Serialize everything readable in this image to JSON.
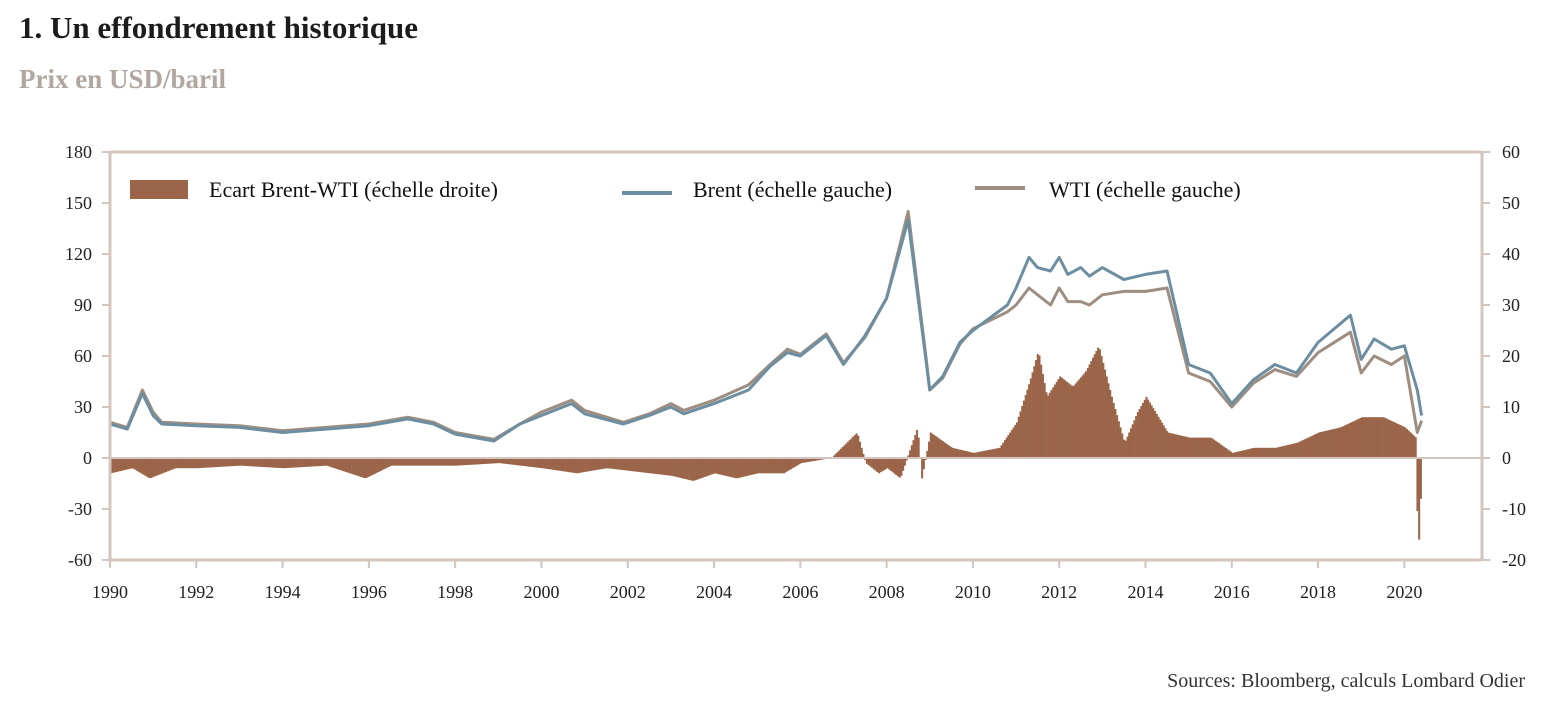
{
  "title": "1. Un effondrement historique",
  "subtitle": "Prix en USD/baril",
  "source": "Sources: Bloomberg, calculs Lombard Odier",
  "colors": {
    "spread": "#9b6549",
    "brent": "#6c8ea0",
    "wti": "#9e8e82",
    "axis": "#d3c6be"
  },
  "chart_data": {
    "type": "line",
    "legend_position": "top",
    "grid": false,
    "x_range": [
      1990,
      2021.8
    ],
    "left_axis": {
      "range": [
        -60,
        180
      ],
      "ticks": [
        "180",
        "150",
        "120",
        "90",
        "60",
        "30",
        "0",
        "-30",
        "-60"
      ]
    },
    "right_axis": {
      "range": [
        -20,
        60
      ],
      "ticks": [
        "60",
        "50",
        "40",
        "30",
        "20",
        "10",
        "0",
        "-10",
        "-20"
      ]
    },
    "x_ticks": [
      "1990",
      "1992",
      "1994",
      "1996",
      "1998",
      "2000",
      "2002",
      "2004",
      "2006",
      "2008",
      "2010",
      "2012",
      "2014",
      "2016",
      "2018",
      "2020"
    ],
    "series": [
      {
        "name": "Ecart Brent-WTI (échelle droite)",
        "type": "bar",
        "axis": "right",
        "x": [
          1990.0,
          1990.5,
          1990.9,
          1991.5,
          1992.0,
          1993.0,
          1994.0,
          1995.0,
          1995.9,
          1996.5,
          1997.0,
          1998.0,
          1999.0,
          2000.0,
          2000.8,
          2001.5,
          2002.0,
          2003.0,
          2003.5,
          2004.0,
          2004.5,
          2005.0,
          2005.6,
          2006.0,
          2006.7,
          2007.3,
          2007.5,
          2007.8,
          2008.0,
          2008.3,
          2008.7,
          2008.8,
          2009.0,
          2009.5,
          2010.0,
          2010.6,
          2011.0,
          2011.3,
          2011.5,
          2011.7,
          2012.0,
          2012.3,
          2012.6,
          2012.9,
          2013.2,
          2013.5,
          2013.8,
          2014.0,
          2014.5,
          2015.0,
          2015.5,
          2016.0,
          2016.5,
          2017.0,
          2017.5,
          2018.0,
          2018.5,
          2019.0,
          2019.5,
          2020.0,
          2020.25,
          2020.3,
          2020.4
        ],
        "values": [
          -3,
          -2,
          -4,
          -2,
          -2,
          -1.5,
          -2,
          -1.5,
          -4,
          -1.5,
          -1.5,
          -1.5,
          -1,
          -2,
          -3,
          -2,
          -2.5,
          -3.5,
          -4.5,
          -3,
          -4,
          -3,
          -3,
          -1,
          0,
          5,
          -1,
          -3,
          -2,
          -4,
          6,
          -4,
          5,
          2,
          1,
          2,
          7,
          15,
          21,
          12,
          16,
          14,
          17,
          22,
          12,
          3,
          9,
          12,
          5,
          4,
          4,
          1,
          2,
          2,
          3,
          5,
          6,
          8,
          8,
          6,
          4,
          -20,
          0
        ]
      },
      {
        "name": "Brent (échelle gauche)",
        "type": "line",
        "axis": "left",
        "x": [
          1990.0,
          1990.4,
          1990.75,
          1991.0,
          1991.2,
          1992.0,
          1993.0,
          1994.0,
          1995.0,
          1996.0,
          1996.9,
          1997.5,
          1998.0,
          1998.9,
          1999.5,
          2000.0,
          2000.7,
          2001.0,
          2001.9,
          2002.5,
          2003.0,
          2003.3,
          2004.0,
          2004.8,
          2005.3,
          2005.7,
          2006.0,
          2006.6,
          2007.0,
          2007.5,
          2008.0,
          2008.5,
          2008.9,
          2009.0,
          2009.3,
          2009.7,
          2010.0,
          2010.8,
          2011.0,
          2011.3,
          2011.5,
          2011.8,
          2012.0,
          2012.2,
          2012.5,
          2012.7,
          2013.0,
          2013.5,
          2014.0,
          2014.5,
          2015.0,
          2015.5,
          2016.0,
          2016.5,
          2017.0,
          2017.5,
          2018.0,
          2018.75,
          2019.0,
          2019.3,
          2019.7,
          2020.0,
          2020.3,
          2020.4
        ],
        "values": [
          20,
          17,
          38,
          25,
          20,
          19,
          18,
          15,
          17,
          19,
          23,
          20,
          14,
          10,
          20,
          25,
          32,
          26,
          20,
          25,
          30,
          26,
          32,
          40,
          54,
          62,
          60,
          72,
          55,
          72,
          94,
          140,
          60,
          40,
          48,
          68,
          75,
          90,
          100,
          118,
          112,
          110,
          118,
          108,
          112,
          107,
          112,
          105,
          108,
          110,
          55,
          50,
          32,
          46,
          55,
          50,
          68,
          84,
          58,
          70,
          64,
          66,
          40,
          25
        ]
      },
      {
        "name": "WTI (échelle gauche)",
        "type": "line",
        "axis": "left",
        "x": [
          1990.0,
          1990.4,
          1990.75,
          1991.0,
          1991.2,
          1992.0,
          1993.0,
          1994.0,
          1995.0,
          1996.0,
          1996.9,
          1997.5,
          1998.0,
          1998.9,
          1999.5,
          2000.0,
          2000.7,
          2001.0,
          2001.9,
          2002.5,
          2003.0,
          2003.3,
          2004.0,
          2004.8,
          2005.3,
          2005.7,
          2006.0,
          2006.6,
          2007.0,
          2007.5,
          2008.0,
          2008.5,
          2008.9,
          2009.0,
          2009.3,
          2009.7,
          2010.0,
          2010.8,
          2011.0,
          2011.3,
          2011.5,
          2011.8,
          2012.0,
          2012.2,
          2012.5,
          2012.7,
          2013.0,
          2013.5,
          2014.0,
          2014.5,
          2015.0,
          2015.5,
          2016.0,
          2016.5,
          2017.0,
          2017.5,
          2018.0,
          2018.75,
          2019.0,
          2019.3,
          2019.7,
          2020.0,
          2020.3,
          2020.4
        ],
        "values": [
          21,
          18,
          40,
          27,
          21,
          20,
          19,
          16,
          18,
          20,
          24,
          21,
          15,
          11,
          20,
          27,
          34,
          28,
          21,
          26,
          32,
          28,
          34,
          43,
          55,
          64,
          61,
          73,
          56,
          71,
          94,
          145,
          62,
          40,
          47,
          67,
          76,
          86,
          90,
          100,
          96,
          90,
          100,
          92,
          92,
          90,
          96,
          98,
          98,
          100,
          50,
          45,
          30,
          44,
          52,
          48,
          62,
          74,
          50,
          60,
          55,
          60,
          15,
          22
        ]
      }
    ]
  }
}
